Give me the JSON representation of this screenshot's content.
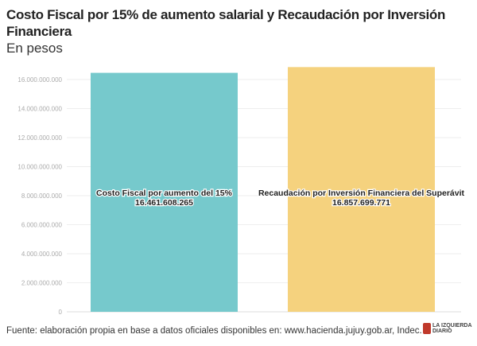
{
  "chart_data": {
    "type": "bar",
    "title": "Costo Fiscal por 15% de aumento salarial y Recaudación por Inversión Financiera",
    "subtitle": "En pesos",
    "categories": [
      "Costo Fiscal por aumento del 15%",
      "Recaudación por Inversión Financiera del Superávit"
    ],
    "values": [
      16461608265,
      16857699771
    ],
    "value_labels": [
      "16.461.608.265",
      "16.857.699.771"
    ],
    "colors": [
      "#76c9cc",
      "#f5d27e"
    ],
    "ylim": [
      0,
      16000000000
    ],
    "yticks": [
      0,
      2000000000,
      4000000000,
      6000000000,
      8000000000,
      10000000000,
      12000000000,
      14000000000,
      16000000000
    ],
    "ytick_labels": [
      "0",
      "2.000.000.000",
      "4.000.000.000",
      "6.000.000.000",
      "8.000.000.000",
      "10.000.000.000",
      "12.000.000.000",
      "14.000.000.000",
      "16.000.000.000"
    ],
    "grid": true,
    "xlabel": "",
    "ylabel": ""
  },
  "footer": {
    "source": "Fuente: elaboración propia en base a datos oficiales disponibles en: www.hacienda.jujuy.gob.ar, Indec.",
    "logo_text": "LA IZQUIERDA DIARIO"
  }
}
